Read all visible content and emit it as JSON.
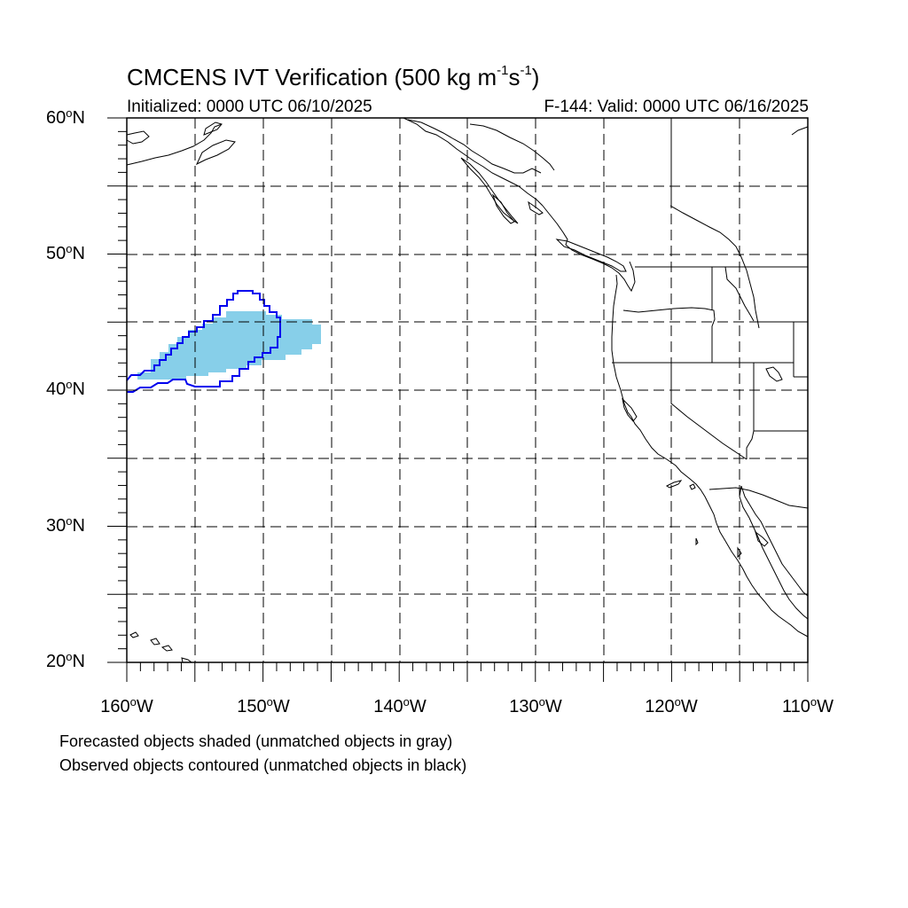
{
  "title": {
    "text": "CMCENS IVT Verification (500 kg m",
    "sup1": "-1",
    "mid": "s",
    "sup2": "-1",
    "tail": ")"
  },
  "initialized": "Initialized: 0000 UTC 06/10/2025",
  "valid": "F-144: Valid: 0000 UTC 06/16/2025",
  "lat_labels": [
    {
      "value": 60,
      "text": "60",
      "suffix": "N"
    },
    {
      "value": 50,
      "text": "50",
      "suffix": "N"
    },
    {
      "value": 40,
      "text": "40",
      "suffix": "N"
    },
    {
      "value": 30,
      "text": "30",
      "suffix": "N"
    },
    {
      "value": 20,
      "text": "20",
      "suffix": "N"
    }
  ],
  "lon_labels": [
    {
      "value": -160,
      "text": "160",
      "suffix": "W"
    },
    {
      "value": -150,
      "text": "150",
      "suffix": "W"
    },
    {
      "value": -140,
      "text": "140",
      "suffix": "W"
    },
    {
      "value": -130,
      "text": "130",
      "suffix": "W"
    },
    {
      "value": -120,
      "text": "120",
      "suffix": "W"
    },
    {
      "value": -110,
      "text": "110",
      "suffix": "W"
    }
  ],
  "degree_symbol": "o",
  "caption1": "Forecasted objects shaded (unmatched objects in gray)",
  "caption2": "Observed objects contoured (unmatched objects in black)",
  "colors": {
    "forecast_fill": "#87cfe9",
    "observed_contour": "#0000ee",
    "coastline": "#000000",
    "grid": "#000000"
  },
  "map": {
    "lon_range": [
      -160,
      -110
    ],
    "lat_range": [
      20,
      60
    ],
    "grid_spacing_deg": 5,
    "grid_style": "dashed"
  }
}
